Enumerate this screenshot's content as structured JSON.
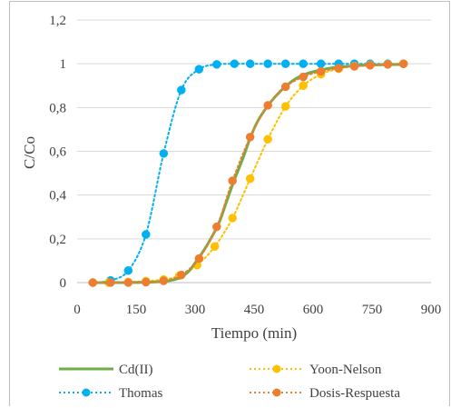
{
  "chart_data": {
    "type": "line",
    "title": "",
    "xlabel": "Tiempo (min)",
    "ylabel": "C/Co",
    "xlim": [
      0,
      900
    ],
    "ylim": [
      0,
      1.2
    ],
    "x_ticks": [
      "0",
      "150",
      "300",
      "450",
      "600",
      "750",
      "900"
    ],
    "y_ticks": [
      "0",
      "0,2",
      "0,4",
      "0,6",
      "0,8",
      "1",
      "1,2"
    ],
    "grid": "horizontal",
    "legend_position": "bottom",
    "series": [
      {
        "name": "Cd(II)",
        "style": "solid-line",
        "color": "#70ad47",
        "points": [
          [
            40,
            0
          ],
          [
            120,
            0
          ],
          [
            200,
            0.003
          ],
          [
            250,
            0.015
          ],
          [
            280,
            0.045
          ],
          [
            300,
            0.09
          ],
          [
            330,
            0.17
          ],
          [
            360,
            0.27
          ],
          [
            380,
            0.37
          ],
          [
            400,
            0.47
          ],
          [
            420,
            0.56
          ],
          [
            440,
            0.66
          ],
          [
            460,
            0.74
          ],
          [
            490,
            0.82
          ],
          [
            520,
            0.88
          ],
          [
            550,
            0.925
          ],
          [
            580,
            0.952
          ],
          [
            620,
            0.972
          ],
          [
            660,
            0.984
          ],
          [
            700,
            0.99
          ],
          [
            760,
            0.995
          ],
          [
            830,
            0.997
          ]
        ]
      },
      {
        "name": "Yoon-Nelson",
        "style": "dotted-markers",
        "color": "#ffc000",
        "points": [
          [
            40,
            0
          ],
          [
            80,
            0
          ],
          [
            130,
            0.003
          ],
          [
            175,
            0.007
          ],
          [
            220,
            0.014
          ],
          [
            260,
            0.032
          ],
          [
            305,
            0.08
          ],
          [
            350,
            0.165
          ],
          [
            395,
            0.295
          ],
          [
            440,
            0.475
          ],
          [
            485,
            0.655
          ],
          [
            530,
            0.805
          ],
          [
            575,
            0.9
          ],
          [
            620,
            0.952
          ],
          [
            665,
            0.977
          ],
          [
            705,
            0.99
          ],
          [
            745,
            0.995
          ],
          [
            790,
            0.998
          ],
          [
            830,
            1.0
          ]
        ]
      },
      {
        "name": "Thomas",
        "style": "dotted-markers",
        "color": "#00b0f0",
        "points": [
          [
            40,
            0
          ],
          [
            85,
            0.01
          ],
          [
            130,
            0.055
          ],
          [
            175,
            0.22
          ],
          [
            220,
            0.59
          ],
          [
            265,
            0.88
          ],
          [
            310,
            0.975
          ],
          [
            355,
            0.997
          ],
          [
            400,
            1.0
          ],
          [
            440,
            1.0
          ],
          [
            485,
            1.0
          ],
          [
            530,
            1.0
          ],
          [
            575,
            1.0
          ],
          [
            620,
            1.0
          ],
          [
            665,
            1.0
          ],
          [
            705,
            1.0
          ],
          [
            745,
            1.0
          ],
          [
            790,
            1.0
          ],
          [
            830,
            1.0
          ]
        ]
      },
      {
        "name": "Dosis-Respuesta",
        "style": "dotted-markers",
        "color": "#ed7d31",
        "points": [
          [
            40,
            0
          ],
          [
            85,
            0
          ],
          [
            130,
            0
          ],
          [
            175,
            0.002
          ],
          [
            220,
            0.008
          ],
          [
            265,
            0.035
          ],
          [
            310,
            0.11
          ],
          [
            355,
            0.255
          ],
          [
            395,
            0.465
          ],
          [
            440,
            0.665
          ],
          [
            485,
            0.81
          ],
          [
            530,
            0.895
          ],
          [
            575,
            0.94
          ],
          [
            620,
            0.965
          ],
          [
            665,
            0.98
          ],
          [
            705,
            0.988
          ],
          [
            745,
            0.993
          ],
          [
            790,
            0.997
          ],
          [
            830,
            1.0
          ]
        ]
      }
    ]
  }
}
